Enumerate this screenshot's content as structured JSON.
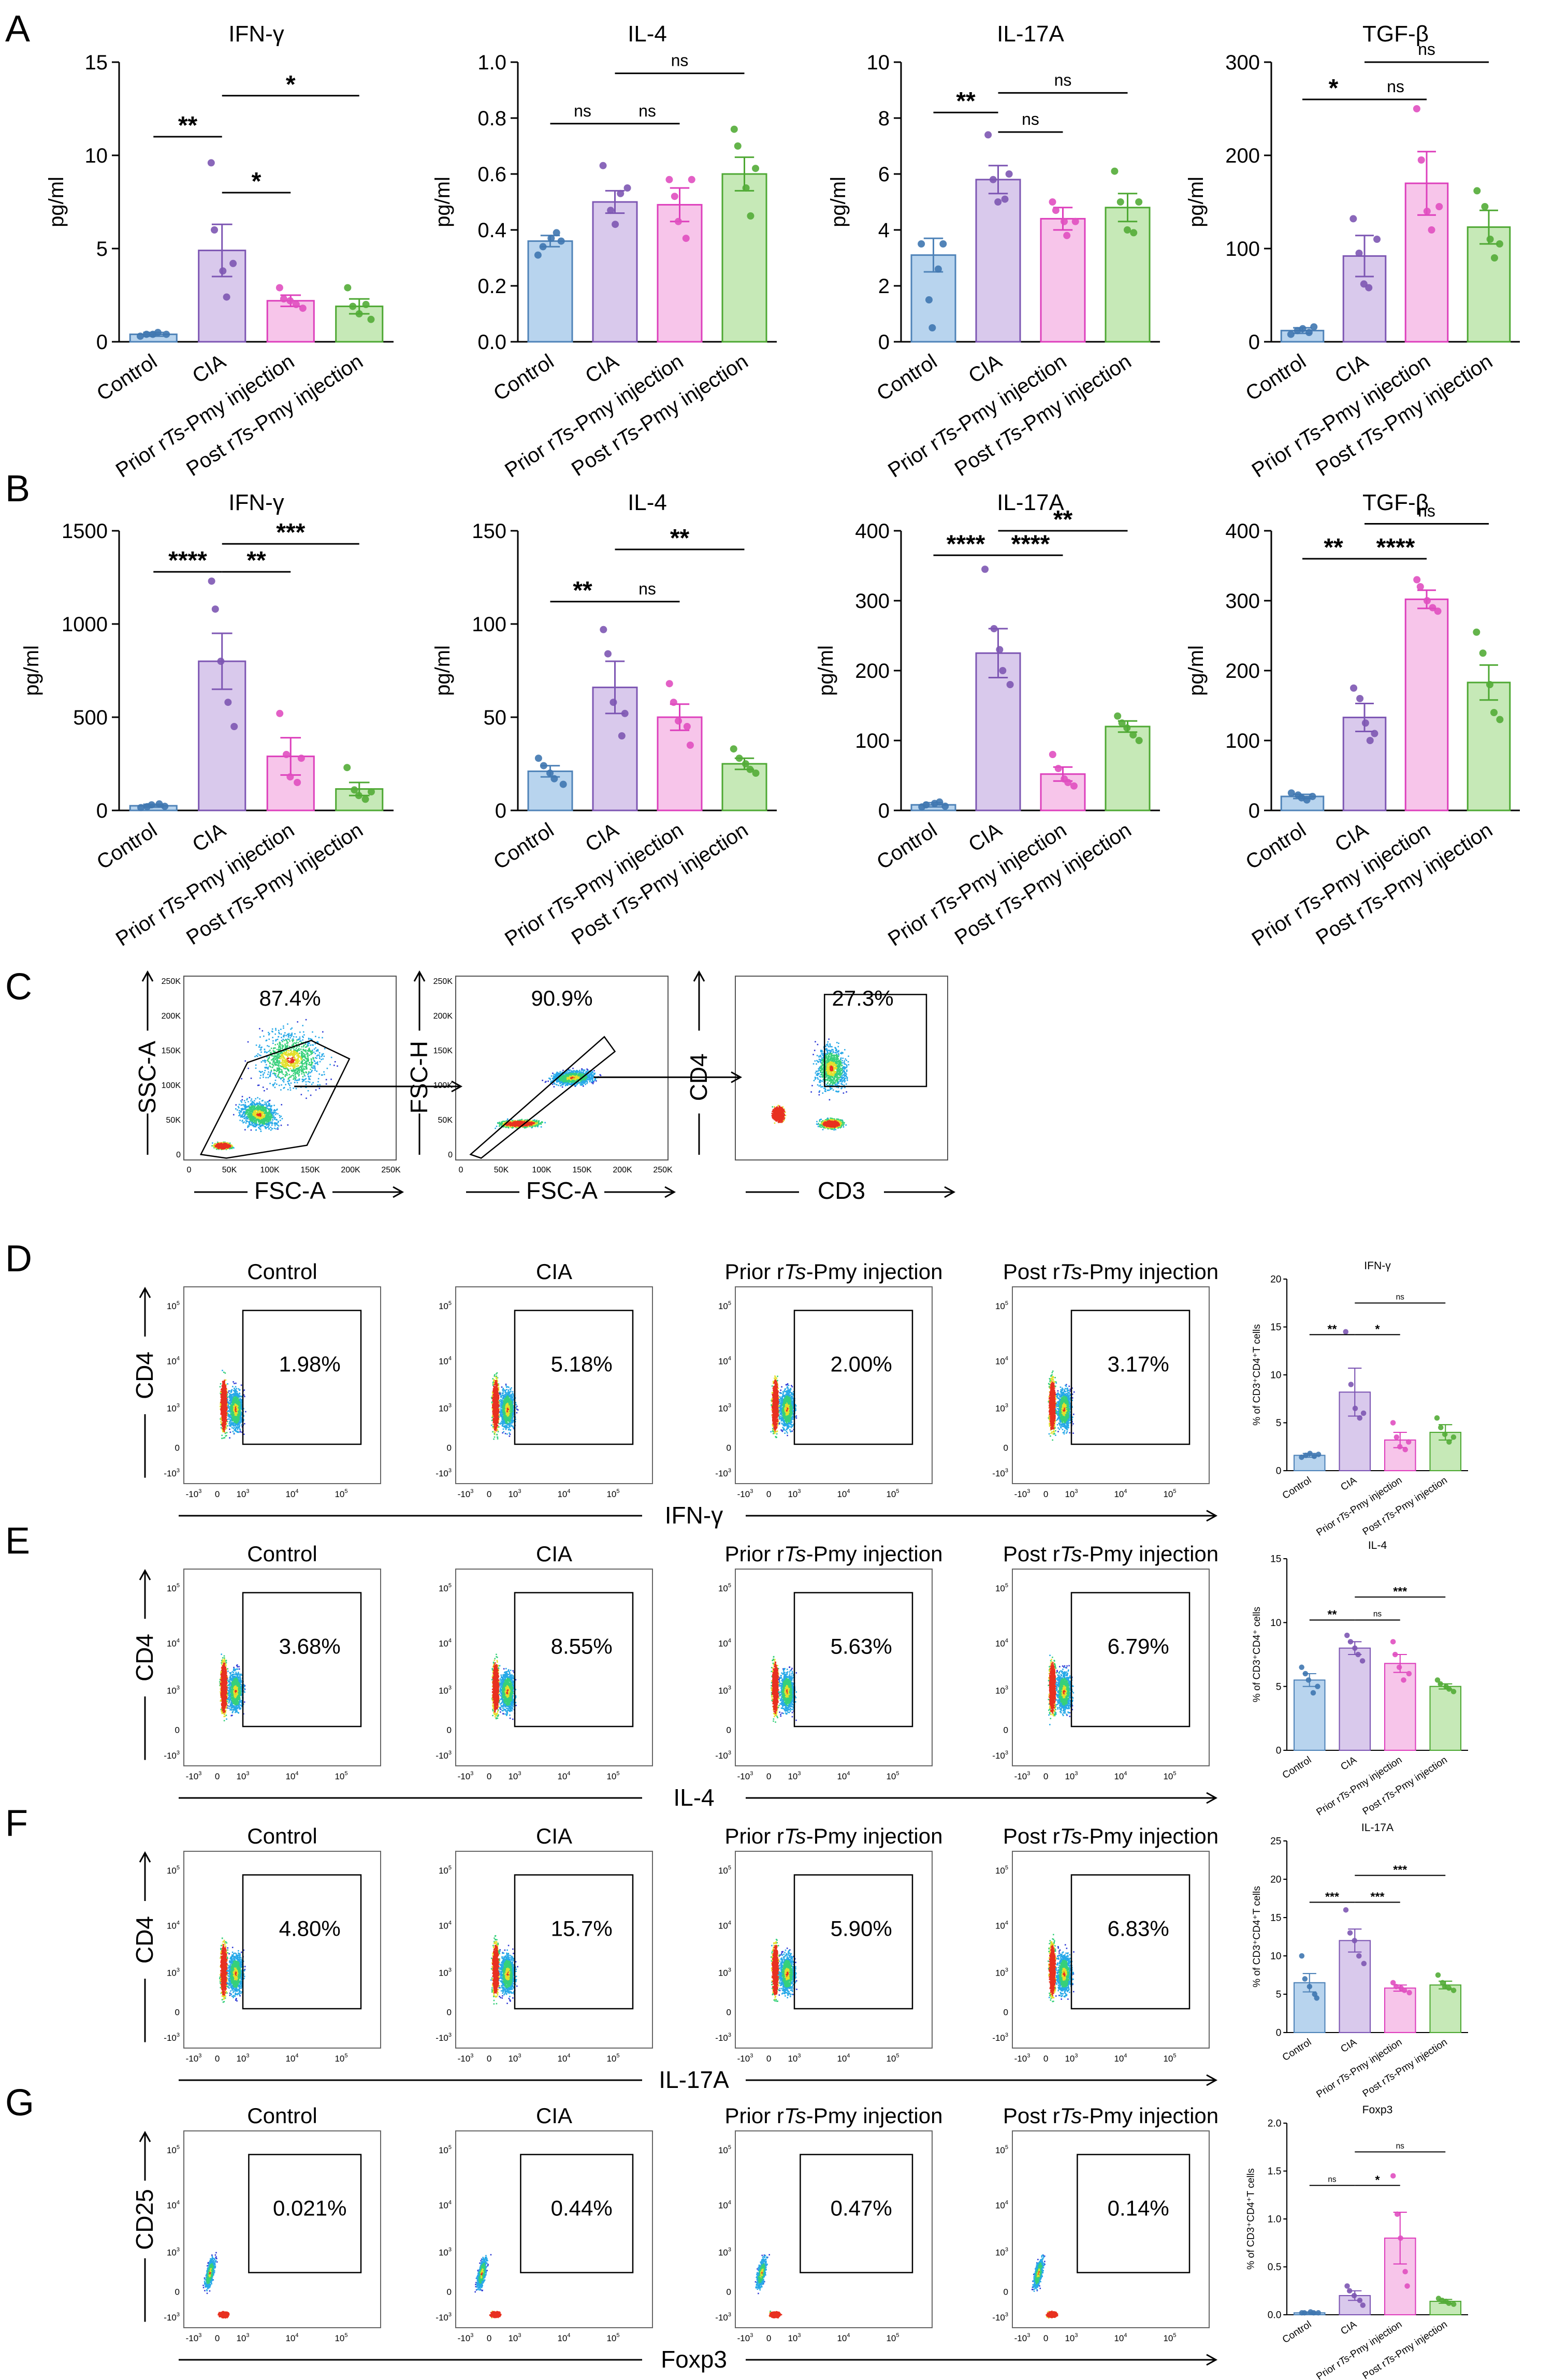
{
  "panels": {
    "A": "A",
    "B": "B",
    "C": "C",
    "D": "D",
    "E": "E",
    "F": "F",
    "G": "G"
  },
  "groups": {
    "control": "Control",
    "cia": "CIA",
    "prior_pre": "Prior r",
    "prior_it": "Ts",
    "prior_post": "-Pmy injection",
    "post_pre": "Post r",
    "post_it": "Ts",
    "post_post": "-Pmy injection"
  },
  "group_colors": {
    "fill": [
      "#b8d4ee",
      "#d9c9ec",
      "#f7c5ea",
      "#c6e9b7"
    ],
    "stroke": [
      "#4f83b8",
      "#7d56b3",
      "#dd3fbc",
      "#4ea833"
    ],
    "dot": [
      "#3f77b0",
      "#7d56b3",
      "#e04fc0",
      "#53ac37"
    ]
  },
  "chart_data": [
    {
      "id": "A1",
      "type": "bar",
      "title": "IFN-γ",
      "ylabel": "pg/ml",
      "ylim": [
        0,
        15
      ],
      "yticks": [
        "0",
        "5",
        "10",
        "15"
      ],
      "categories": [
        "Control",
        "CIA",
        "Prior rTs-Pmy injection",
        "Post rTs-Pmy injection"
      ],
      "values": [
        0.4,
        4.9,
        2.2,
        1.9
      ],
      "sem": [
        0.1,
        1.4,
        0.3,
        0.4
      ],
      "points": [
        [
          0.3,
          0.4,
          0.4,
          0.5,
          0.4
        ],
        [
          9.6,
          6.0,
          3.8,
          2.4,
          4.2
        ],
        [
          2.9,
          2.3,
          2.2,
          2.0,
          1.8
        ],
        [
          2.9,
          1.9,
          1.5,
          2.0,
          1.2
        ]
      ],
      "sig": [
        {
          "a": 0,
          "b": 1,
          "l": "**",
          "y": 11.0
        },
        {
          "a": 1,
          "b": 2,
          "l": "*",
          "y": 8.0
        },
        {
          "a": 1,
          "b": 3,
          "l": "*",
          "y": 13.2
        }
      ]
    },
    {
      "id": "A2",
      "type": "bar",
      "title": "IL-4",
      "ylabel": "pg/ml",
      "ylim": [
        0,
        1.0
      ],
      "yticks": [
        "0.0",
        "0.2",
        "0.4",
        "0.6",
        "0.8",
        "1.0"
      ],
      "categories": [
        "Control",
        "CIA",
        "Prior rTs-Pmy injection",
        "Post rTs-Pmy injection"
      ],
      "values": [
        0.36,
        0.5,
        0.49,
        0.6
      ],
      "sem": [
        0.02,
        0.04,
        0.06,
        0.06
      ],
      "points": [
        [
          0.31,
          0.34,
          0.37,
          0.39,
          0.36
        ],
        [
          0.63,
          0.47,
          0.42,
          0.53,
          0.55
        ],
        [
          0.58,
          0.52,
          0.43,
          0.37,
          0.58
        ],
        [
          0.76,
          0.7,
          0.55,
          0.45,
          0.62
        ]
      ],
      "sig": [
        {
          "a": 0,
          "b": 1,
          "l": "ns",
          "y": 0.78
        },
        {
          "a": 1,
          "b": 2,
          "l": "ns",
          "y": 0.78
        },
        {
          "a": 1,
          "b": 3,
          "l": "ns",
          "y": 0.96
        }
      ]
    },
    {
      "id": "A3",
      "type": "bar",
      "title": "IL-17A",
      "ylabel": "pg/ml",
      "ylim": [
        0,
        10
      ],
      "yticks": [
        "0",
        "2",
        "4",
        "6",
        "8",
        "10"
      ],
      "categories": [
        "Control",
        "CIA",
        "Prior rTs-Pmy injection",
        "Post rTs-Pmy injection"
      ],
      "values": [
        3.1,
        5.8,
        4.4,
        4.8
      ],
      "sem": [
        0.6,
        0.5,
        0.4,
        0.5
      ],
      "points": [
        [
          3.5,
          1.5,
          0.5,
          2.6,
          3.5
        ],
        [
          7.4,
          5.8,
          5.0,
          5.1,
          6.0
        ],
        [
          5.0,
          4.7,
          4.3,
          3.8,
          4.3
        ],
        [
          6.1,
          5.0,
          4.0,
          3.9,
          5.0
        ]
      ],
      "sig": [
        {
          "a": 0,
          "b": 1,
          "l": "**",
          "y": 8.2
        },
        {
          "a": 1,
          "b": 2,
          "l": "ns",
          "y": 7.5
        },
        {
          "a": 1,
          "b": 3,
          "l": "ns",
          "y": 8.9
        }
      ]
    },
    {
      "id": "A4",
      "type": "bar",
      "title": "TGF-β",
      "ylabel": "pg/ml",
      "ylim": [
        0,
        300
      ],
      "yticks": [
        "0",
        "100",
        "200",
        "300"
      ],
      "categories": [
        "Control",
        "CIA",
        "Prior rTs-Pmy injection",
        "Post rTs-Pmy injection"
      ],
      "values": [
        12,
        92,
        170,
        123
      ],
      "sem": [
        3,
        22,
        34,
        18
      ],
      "points": [
        [
          8,
          12,
          14,
          10,
          16
        ],
        [
          132,
          95,
          62,
          58,
          110
        ],
        [
          250,
          195,
          140,
          120,
          145
        ],
        [
          162,
          145,
          110,
          90,
          105
        ]
      ],
      "sig": [
        {
          "a": 0,
          "b": 1,
          "l": "*",
          "y": 260
        },
        {
          "a": 1,
          "b": 2,
          "l": "ns",
          "y": 260
        },
        {
          "a": 1,
          "b": 3,
          "l": "ns",
          "y": 300
        }
      ]
    },
    {
      "id": "B1",
      "type": "bar",
      "title": "IFN-γ",
      "ylabel": "pg/ml",
      "ylim": [
        0,
        1500
      ],
      "yticks": [
        "0",
        "500",
        "1000",
        "1500"
      ],
      "categories": [
        "Control",
        "CIA",
        "Prior rTs-Pmy injection",
        "Post rTs-Pmy injection"
      ],
      "values": [
        25,
        800,
        290,
        115
      ],
      "sem": [
        8,
        150,
        100,
        35
      ],
      "points": [
        [
          15,
          20,
          30,
          35,
          22
        ],
        [
          1230,
          1080,
          800,
          580,
          450
        ],
        [
          520,
          300,
          180,
          150,
          280
        ],
        [
          230,
          110,
          80,
          60,
          100
        ]
      ],
      "sig": [
        {
          "a": 0,
          "b": 1,
          "l": "****",
          "y": 1280
        },
        {
          "a": 1,
          "b": 2,
          "l": "**",
          "y": 1280
        },
        {
          "a": 1,
          "b": 3,
          "l": "***",
          "y": 1430
        }
      ]
    },
    {
      "id": "B2",
      "type": "bar",
      "title": "IL-4",
      "ylabel": "pg/ml",
      "ylim": [
        0,
        150
      ],
      "yticks": [
        "0",
        "50",
        "100",
        "150"
      ],
      "categories": [
        "Control",
        "CIA",
        "Prior rTs-Pmy injection",
        "Post rTs-Pmy injection"
      ],
      "values": [
        21,
        66,
        50,
        25
      ],
      "sem": [
        3,
        14,
        7,
        3
      ],
      "points": [
        [
          28,
          24,
          20,
          17,
          14
        ],
        [
          97,
          84,
          58,
          40,
          52
        ],
        [
          68,
          58,
          48,
          45,
          35
        ],
        [
          33,
          28,
          25,
          22,
          20
        ]
      ],
      "sig": [
        {
          "a": 0,
          "b": 1,
          "l": "**",
          "y": 112
        },
        {
          "a": 1,
          "b": 2,
          "l": "ns",
          "y": 112
        },
        {
          "a": 1,
          "b": 3,
          "l": "**",
          "y": 140
        }
      ]
    },
    {
      "id": "B3",
      "type": "bar",
      "title": "IL-17A",
      "ylabel": "pg/ml",
      "ylim": [
        0,
        400
      ],
      "yticks": [
        "0",
        "100",
        "200",
        "300",
        "400"
      ],
      "categories": [
        "Control",
        "CIA",
        "Prior rTs-Pmy injection",
        "Post rTs-Pmy injection"
      ],
      "values": [
        8,
        225,
        52,
        120
      ],
      "sem": [
        3,
        35,
        10,
        8
      ],
      "points": [
        [
          5,
          8,
          10,
          12,
          6
        ],
        [
          345,
          260,
          230,
          200,
          180
        ],
        [
          80,
          60,
          45,
          40,
          35
        ],
        [
          135,
          125,
          118,
          108,
          100
        ]
      ],
      "sig": [
        {
          "a": 0,
          "b": 1,
          "l": "****",
          "y": 365
        },
        {
          "a": 1,
          "b": 2,
          "l": "****",
          "y": 365
        },
        {
          "a": 1,
          "b": 3,
          "l": "**",
          "y": 400
        }
      ]
    },
    {
      "id": "B4",
      "type": "bar",
      "title": "TGF-β",
      "ylabel": "pg/ml",
      "ylim": [
        0,
        400
      ],
      "yticks": [
        "0",
        "100",
        "200",
        "300",
        "400"
      ],
      "categories": [
        "Control",
        "CIA",
        "Prior rTs-Pmy injection",
        "Post rTs-Pmy injection"
      ],
      "values": [
        20,
        133,
        302,
        183
      ],
      "sem": [
        3,
        20,
        13,
        25
      ],
      "points": [
        [
          25,
          22,
          18,
          15,
          20
        ],
        [
          175,
          160,
          125,
          100,
          110
        ],
        [
          330,
          320,
          300,
          290,
          285
        ],
        [
          255,
          225,
          180,
          140,
          130
        ]
      ],
      "sig": [
        {
          "a": 0,
          "b": 1,
          "l": "**",
          "y": 360
        },
        {
          "a": 1,
          "b": 2,
          "l": "****",
          "y": 360
        },
        {
          "a": 1,
          "b": 3,
          "l": "ns",
          "y": 410
        }
      ]
    },
    {
      "id": "D5",
      "type": "bar",
      "title": "IFN-γ",
      "ylabel": "% of CD3⁺CD4⁺T cells",
      "ylim": [
        0,
        20
      ],
      "yticks": [
        "0",
        "5",
        "10",
        "15",
        "20"
      ],
      "categories": [
        "Control",
        "CIA",
        "Prior rTs-Pmy injection",
        "Post rTs-Pmy injection"
      ],
      "values": [
        1.6,
        8.2,
        3.2,
        4.0
      ],
      "sem": [
        0.2,
        2.5,
        0.8,
        0.8
      ],
      "points": [
        [
          1.4,
          1.6,
          1.8,
          1.5,
          1.7
        ],
        [
          14.5,
          9.0,
          6.5,
          5.5,
          6.0
        ],
        [
          5.0,
          3.5,
          2.5,
          2.2,
          3.0
        ],
        [
          5.5,
          4.5,
          3.8,
          3.0,
          3.5
        ]
      ],
      "sig": [
        {
          "a": 0,
          "b": 1,
          "l": "**",
          "y": 14.2
        },
        {
          "a": 1,
          "b": 2,
          "l": "*",
          "y": 14.2
        },
        {
          "a": 1,
          "b": 3,
          "l": "ns",
          "y": 17.5
        }
      ]
    },
    {
      "id": "E5",
      "type": "bar",
      "title": "IL-4",
      "ylabel": "% of CD3⁺CD4⁺ cells",
      "ylim": [
        0,
        15
      ],
      "yticks": [
        "0",
        "5",
        "10",
        "15"
      ],
      "categories": [
        "Control",
        "CIA",
        "Prior rTs-Pmy injection",
        "Post rTs-Pmy injection"
      ],
      "values": [
        5.5,
        8.0,
        6.8,
        5.0
      ],
      "sem": [
        0.5,
        0.5,
        0.7,
        0.2
      ],
      "points": [
        [
          6.5,
          6.0,
          5.5,
          4.5,
          5.0
        ],
        [
          9.0,
          8.5,
          8.0,
          7.5,
          7.0
        ],
        [
          8.5,
          7.5,
          6.5,
          5.5,
          6.0
        ],
        [
          5.5,
          5.2,
          5.0,
          4.8,
          4.6
        ]
      ],
      "sig": [
        {
          "a": 0,
          "b": 1,
          "l": "**",
          "y": 10.2
        },
        {
          "a": 1,
          "b": 2,
          "l": "ns",
          "y": 10.2
        },
        {
          "a": 1,
          "b": 3,
          "l": "***",
          "y": 12.0
        }
      ]
    },
    {
      "id": "F5",
      "type": "bar",
      "title": "IL-17A",
      "ylabel": "% of CD3⁺CD4⁺T cells",
      "ylim": [
        0,
        25
      ],
      "yticks": [
        "0",
        "5",
        "10",
        "15",
        "20",
        "25"
      ],
      "categories": [
        "Control",
        "CIA",
        "Prior rTs-Pmy injection",
        "Post rTs-Pmy injection"
      ],
      "values": [
        6.5,
        12.0,
        5.8,
        6.2
      ],
      "sem": [
        1.2,
        1.5,
        0.4,
        0.5
      ],
      "points": [
        [
          10.0,
          7.0,
          6.0,
          5.0,
          4.5
        ],
        [
          16.0,
          13.0,
          12.0,
          10.0,
          9.0
        ],
        [
          6.5,
          6.0,
          5.8,
          5.5,
          5.2
        ],
        [
          7.5,
          6.5,
          6.0,
          5.8,
          5.5
        ]
      ],
      "sig": [
        {
          "a": 0,
          "b": 1,
          "l": "***",
          "y": 17.0
        },
        {
          "a": 1,
          "b": 2,
          "l": "***",
          "y": 17.0
        },
        {
          "a": 1,
          "b": 3,
          "l": "***",
          "y": 20.5
        }
      ]
    },
    {
      "id": "G5",
      "type": "bar",
      "title": "Foxp3",
      "ylabel": "% of CD3⁺CD4⁺T cells",
      "ylim": [
        0,
        2.0
      ],
      "yticks": [
        "0.0",
        "0.5",
        "1.0",
        "1.5",
        "2.0"
      ],
      "categories": [
        "Control",
        "CIA",
        "Prior rTs-Pmy injection",
        "Post rTs-Pmy injection"
      ],
      "values": [
        0.02,
        0.2,
        0.8,
        0.14
      ],
      "sem": [
        0.01,
        0.05,
        0.27,
        0.02
      ],
      "points": [
        [
          0.02,
          0.02,
          0.03,
          0.02,
          0.02
        ],
        [
          0.3,
          0.25,
          0.2,
          0.15,
          0.1
        ],
        [
          1.45,
          1.05,
          0.8,
          0.45,
          0.3
        ],
        [
          0.17,
          0.15,
          0.14,
          0.12,
          0.11
        ]
      ],
      "sig": [
        {
          "a": 0,
          "b": 1,
          "l": "ns",
          "y": 1.35
        },
        {
          "a": 1,
          "b": 2,
          "l": "*",
          "y": 1.35
        },
        {
          "a": 1,
          "b": 3,
          "l": "ns",
          "y": 1.7
        }
      ]
    }
  ],
  "gating": {
    "plots": [
      {
        "pct": "87.4%",
        "xlabel": "FSC-A",
        "ylabel": "SSC-A"
      },
      {
        "pct": "90.9%",
        "xlabel": "FSC-A",
        "ylabel": "FSC-H"
      },
      {
        "pct": "27.3%",
        "xlabel": "CD3",
        "ylabel": "CD4"
      }
    ],
    "lin_ticks": [
      "0",
      "50K",
      "100K",
      "150K",
      "200K",
      "250K"
    ]
  },
  "flow_rows": [
    {
      "id": "D",
      "ylabel": "CD4",
      "xlabel": "IFN-γ",
      "pcts": [
        "1.98%",
        "5.18%",
        "2.00%",
        "3.17%"
      ]
    },
    {
      "id": "E",
      "ylabel": "CD4",
      "xlabel": "IL-4",
      "pcts": [
        "3.68%",
        "8.55%",
        "5.63%",
        "6.79%"
      ]
    },
    {
      "id": "F",
      "ylabel": "CD4",
      "xlabel": "IL-17A",
      "pcts": [
        "4.80%",
        "15.7%",
        "5.90%",
        "6.83%"
      ]
    },
    {
      "id": "G",
      "ylabel": "CD25",
      "xlabel": "Foxp3",
      "pcts": [
        "0.021%",
        "0.44%",
        "0.47%",
        "0.14%"
      ]
    }
  ],
  "log_ticks": {
    "neg": "-10",
    "zero": "0",
    "p3": "10",
    "p4": "10",
    "p5": "10",
    "e3": "3",
    "e4": "4",
    "e5": "5"
  }
}
